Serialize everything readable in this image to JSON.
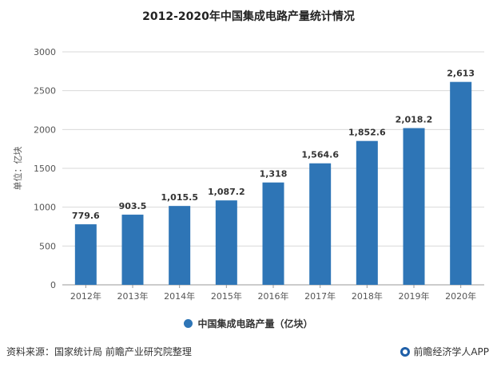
{
  "chart_data": {
    "type": "bar",
    "title": "2012-2020年中国集成电路产量统计情况",
    "ylabel": "单位：亿块",
    "categories": [
      "2012年",
      "2013年",
      "2014年",
      "2015年",
      "2016年",
      "2017年",
      "2018年",
      "2019年",
      "2020年"
    ],
    "series": [
      {
        "name": "中国集成电路产量（亿块）",
        "values": [
          779.6,
          903.5,
          1015.5,
          1087.2,
          1318,
          1564.6,
          1852.6,
          2018.2,
          2613
        ],
        "data_labels": [
          "779.6",
          "903.5",
          "1,015.5",
          "1,087.2",
          "1,318",
          "1,564.6",
          "1,852.6",
          "2,018.2",
          "2,613"
        ],
        "color": "#2e75b6"
      }
    ],
    "ylim": [
      0,
      3000
    ],
    "yticks": [
      0,
      500,
      1000,
      1500,
      2000,
      2500,
      3000
    ],
    "ytick_labels": [
      "0",
      "500",
      "1000",
      "1500",
      "2000",
      "2500",
      "3000"
    ],
    "grid": true,
    "legend_placement": "bottom"
  },
  "footer": {
    "source": "资料来源：国家统计局 前瞻产业研究院整理",
    "brand": "前瞻经济学人APP"
  }
}
